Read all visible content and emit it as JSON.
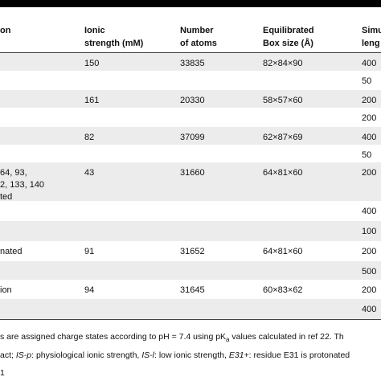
{
  "table": {
    "header": [
      [
        "on"
      ],
      [
        "Ionic",
        "strength (mM)"
      ],
      [
        "Number",
        "of atoms"
      ],
      [
        "Equilibrated",
        "Box size (Å)"
      ],
      [
        "Simu",
        "leng"
      ]
    ],
    "rows": [
      [
        [],
        [
          "150"
        ],
        [
          "33835"
        ],
        [
          "82×84×90"
        ],
        [
          "400"
        ]
      ],
      [
        [],
        [],
        [],
        [],
        [
          "50"
        ]
      ],
      [
        [],
        [
          "161"
        ],
        [
          "20330"
        ],
        [
          "58×57×60"
        ],
        [
          "200"
        ]
      ],
      [
        [],
        [],
        [],
        [],
        [
          "200"
        ]
      ],
      [
        [],
        [
          "82"
        ],
        [
          "37099"
        ],
        [
          "62×87×69"
        ],
        [
          "400"
        ]
      ],
      [
        [],
        [],
        [],
        [],
        [
          "50"
        ]
      ],
      [
        [
          "64, 93,",
          "2, 133, 140",
          "ted"
        ],
        [
          "43"
        ],
        [
          "31660"
        ],
        [
          "64×81×60"
        ],
        [
          "200"
        ]
      ],
      [
        [],
        [],
        [],
        [],
        [
          "400"
        ]
      ],
      [
        [],
        [],
        [],
        [],
        [
          "100"
        ]
      ],
      [
        [
          "nated"
        ],
        [
          "91"
        ],
        [
          "31652"
        ],
        [
          "64×81×60"
        ],
        [
          "200"
        ]
      ],
      [
        [],
        [],
        [],
        [],
        [
          "500"
        ]
      ],
      [
        [
          "ion"
        ],
        [
          "94"
        ],
        [
          "31645"
        ],
        [
          "60×83×62"
        ],
        [
          "200"
        ]
      ],
      [
        [],
        [],
        [],
        [],
        [
          "400"
        ]
      ]
    ]
  },
  "footnotes": [
    [
      {
        "text": "s are assigned charge states according to pH = 7.4 using pK",
        "style": "normal"
      },
      {
        "text": "a",
        "style": "sub"
      },
      {
        "text": " values calculated in ref 22. Th",
        "style": "normal"
      }
    ],
    [
      {
        "text": "act; ",
        "style": "normal"
      },
      {
        "text": "IS-p",
        "style": "italic"
      },
      {
        "text": ": physiological ionic strength, ",
        "style": "normal"
      },
      {
        "text": "IS-l",
        "style": "italic"
      },
      {
        "text": ": low ionic strength, ",
        "style": "normal"
      },
      {
        "text": "E31+",
        "style": "italic"
      },
      {
        "text": ": residue E31 is protonated",
        "style": "normal"
      }
    ],
    [
      {
        "text": "1",
        "style": "normal"
      }
    ]
  ]
}
